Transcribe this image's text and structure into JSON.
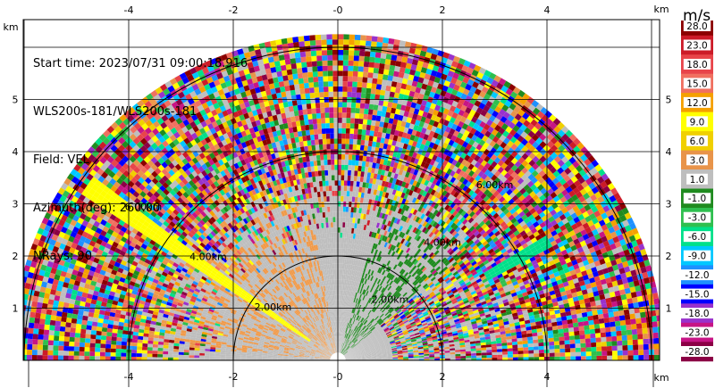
{
  "info": {
    "start_time": "Start time: 2023/07/31 09:00:18.916",
    "instrument": "WLS200s-181/WLS200s-181",
    "field": "Field: VEL",
    "azimuth": "Azimuth(deg): 260.00",
    "nrays": "NRays: 90"
  },
  "chart_data": {
    "type": "heatmap",
    "title": "",
    "xlabel": "km",
    "ylabel": "km",
    "x_ticks": [
      "-4",
      "-2",
      "-0",
      "2",
      "4"
    ],
    "y_ticks": [
      "1",
      "2",
      "3",
      "4",
      "5"
    ],
    "xlim": [
      -6.1,
      6.1
    ],
    "ylim": [
      0,
      6.1
    ],
    "range_rings": [
      {
        "radius_km": 2,
        "label": "2.00km"
      },
      {
        "radius_km": 4,
        "label": "4.00km"
      },
      {
        "radius_km": 6,
        "label": "6.00km"
      }
    ],
    "grid": true,
    "colorbar": {
      "unit": "m/s",
      "labels": [
        "28.0",
        "23.0",
        "18.0",
        "15.0",
        "12.0",
        "9.0",
        "6.0",
        "3.0",
        "1.0",
        "-1.0",
        "-3.0",
        "-6.0",
        "-9.0",
        "-12.0",
        "-15.0",
        "-18.0",
        "-23.0",
        "-28.0"
      ],
      "colors": [
        "#8b0000",
        "#cc1b28",
        "#e8444a",
        "#f07060",
        "#f5a000",
        "#ffff00",
        "#f0d000",
        "#e8944a",
        "#bebebe",
        "#1f8b1f",
        "#2fbf4f",
        "#00e08a",
        "#00c8ff",
        "#1e90ff",
        "#0000ff",
        "#9932cc",
        "#c71585",
        "#8b0045"
      ]
    }
  }
}
